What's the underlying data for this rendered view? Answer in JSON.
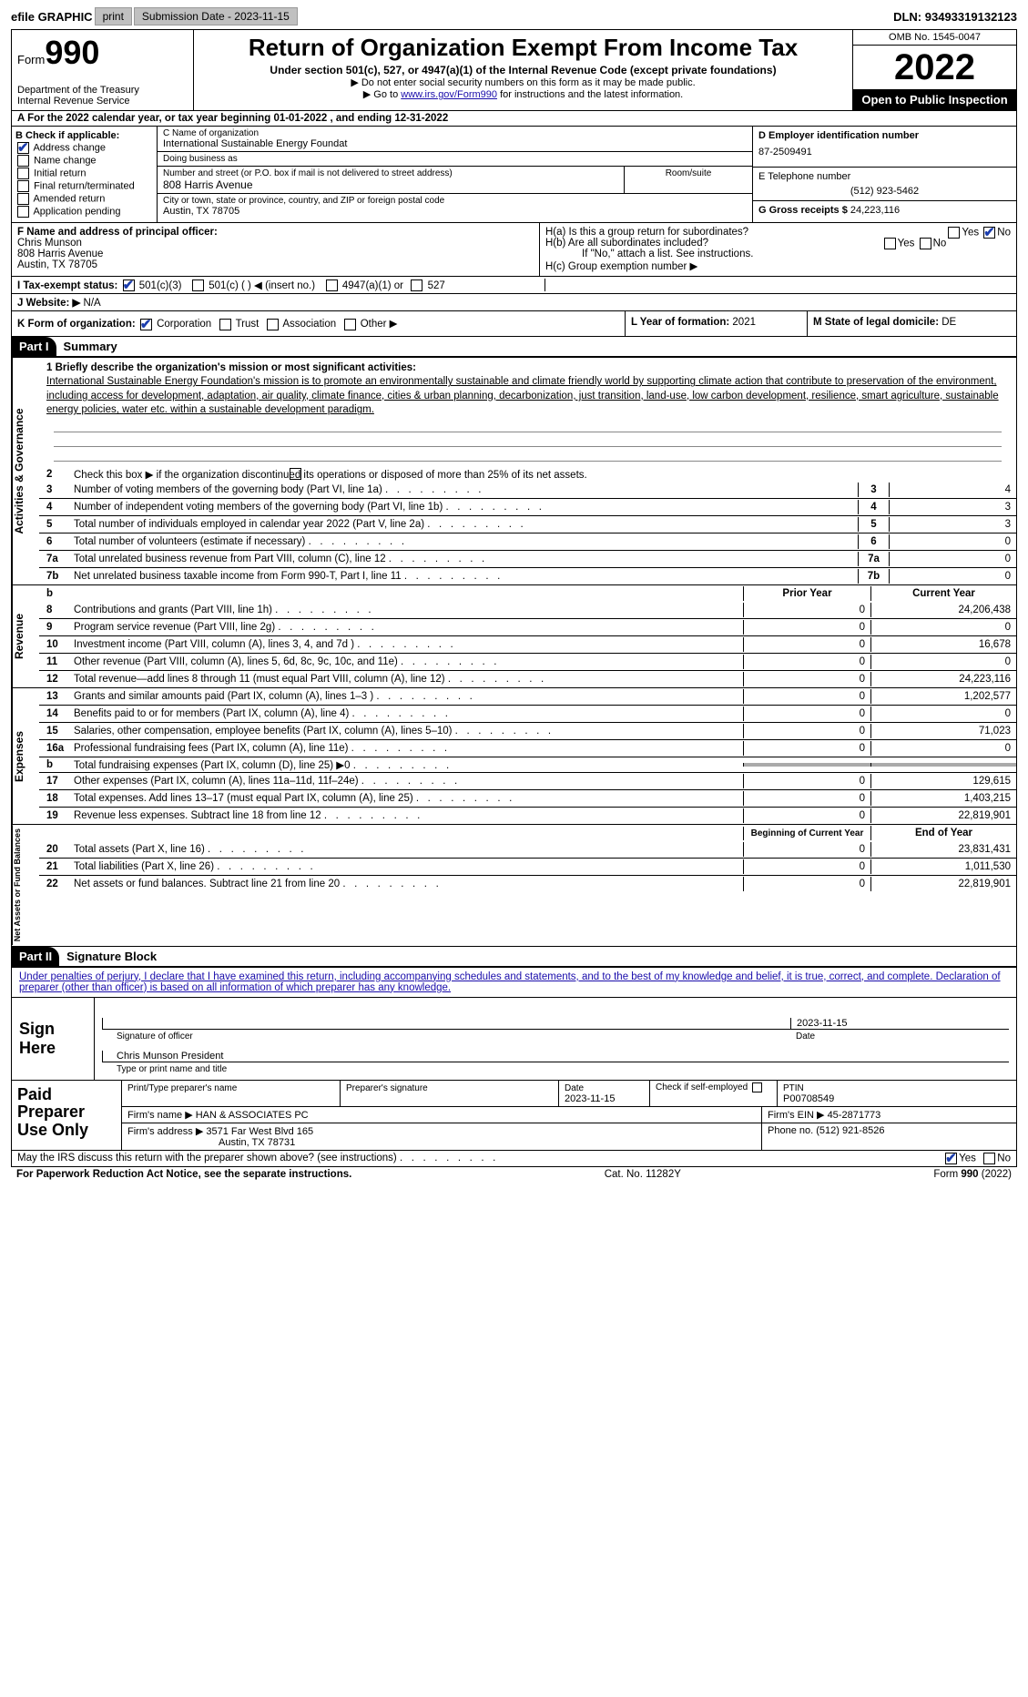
{
  "topbar": {
    "efile": "efile GRAPHIC",
    "print": "print",
    "subdate_lbl": "Submission Date - ",
    "subdate": "2023-11-15",
    "dln_lbl": "DLN: ",
    "dln": "93493319132123"
  },
  "hdr": {
    "form": "Form",
    "num": "990",
    "dept": "Department of the Treasury\nInternal Revenue Service",
    "title": "Return of Organization Exempt From Income Tax",
    "sub": "Under section 501(c), 527, or 4947(a)(1) of the Internal Revenue Code (except private foundations)",
    "note1": "▶ Do not enter social security numbers on this form as it may be made public.",
    "note2_pre": "▶ Go to ",
    "note2_link": "www.irs.gov/Form990",
    "note2_post": " for instructions and the latest information.",
    "omb": "OMB No. 1545-0047",
    "year": "2022",
    "pub": "Open to Public Inspection"
  },
  "rowA": {
    "text": "A For the 2022 calendar year, or tax year beginning ",
    "d1": "01-01-2022",
    "mid": " , and ending ",
    "d2": "12-31-2022"
  },
  "colB": {
    "lbl": "B Check if applicable:",
    "items": [
      "Address change",
      "Name change",
      "Initial return",
      "Final return/terminated",
      "Amended return",
      "Application pending"
    ],
    "checked": [
      true,
      false,
      false,
      false,
      false,
      false
    ]
  },
  "colC": {
    "name_lbl": "C Name of organization",
    "name": "International Sustainable Energy Foundat",
    "dba_lbl": "Doing business as",
    "dba": "",
    "addr_lbl": "Number and street (or P.O. box if mail is not delivered to street address)",
    "room_lbl": "Room/suite",
    "addr": "808 Harris Avenue",
    "city_lbl": "City or town, state or province, country, and ZIP or foreign postal code",
    "city": "Austin, TX  78705"
  },
  "colD": {
    "ein_lbl": "D Employer identification number",
    "ein": "87-2509491",
    "tel_lbl": "E Telephone number",
    "tel": "(512) 923-5462",
    "gross_lbl": "G Gross receipts $ ",
    "gross": "24,223,116"
  },
  "secF": {
    "lbl": "F  Name and address of principal officer:",
    "name": "Chris Munson",
    "addr1": "808 Harris Avenue",
    "addr2": "Austin, TX  78705"
  },
  "secH": {
    "ha": "H(a)  Is this a group return for subordinates?",
    "hb": "H(b)  Are all subordinates included?",
    "hbnote": "If \"No,\" attach a list. See instructions.",
    "hc": "H(c)  Group exemption number ▶",
    "ha_no": true
  },
  "rowI": {
    "lbl": "I   Tax-exempt status:",
    "opts": [
      "501(c)(3)",
      "501(c) (  ) ◀ (insert no.)",
      "4947(a)(1) or",
      "527"
    ],
    "checked": [
      true,
      false,
      false,
      false
    ]
  },
  "rowJ": {
    "lbl": "J   Website: ▶ ",
    "val": "N/A"
  },
  "rowK": {
    "lbl": "K Form of organization: ",
    "opts": [
      "Corporation",
      "Trust",
      "Association",
      "Other ▶"
    ],
    "checked": [
      true,
      false,
      false,
      false
    ],
    "lyr_lbl": "L Year of formation: ",
    "lyr": "2021",
    "mstate_lbl": "M State of legal domicile: ",
    "mstate": "DE"
  },
  "part1": {
    "hdr": "Part I",
    "title": "Summary",
    "l1_lbl": "1  Briefly describe the organization's mission or most significant activities:",
    "l1": "International Sustainable Energy Foundation's mission is to promote an environmentally sustainable and climate friendly world by supporting climate action that contribute to preservation of the environment, including access for development, adaptation, air quality, climate finance, cities & urban planning, decarbonization, just transition, land-use, low carbon development, resilience, smart agriculture, sustainable energy policies, water etc. within a sustainable development paradigm.",
    "l2": "Check this box ▶       if the organization discontinued its operations or disposed of more than 25% of its net assets.",
    "gov_lines": [
      {
        "n": "3",
        "txt": "Number of voting members of the governing body (Part VI, line 1a)",
        "val": "4"
      },
      {
        "n": "4",
        "txt": "Number of independent voting members of the governing body (Part VI, line 1b)",
        "val": "3"
      },
      {
        "n": "5",
        "txt": "Total number of individuals employed in calendar year 2022 (Part V, line 2a)",
        "val": "3"
      },
      {
        "n": "6",
        "txt": "Total number of volunteers (estimate if necessary)",
        "val": "0"
      },
      {
        "n": "7a",
        "txt": "Total unrelated business revenue from Part VIII, column (C), line 12",
        "val": "0"
      },
      {
        "n": "7b",
        "txt": "Net unrelated business taxable income from Form 990-T, Part I, line 11",
        "val": "0"
      }
    ],
    "col_hdr": {
      "prior": "Prior Year",
      "curr": "Current Year"
    },
    "rev_lines": [
      {
        "n": "8",
        "txt": "Contributions and grants (Part VIII, line 1h)",
        "p": "0",
        "c": "24,206,438"
      },
      {
        "n": "9",
        "txt": "Program service revenue (Part VIII, line 2g)",
        "p": "0",
        "c": "0"
      },
      {
        "n": "10",
        "txt": "Investment income (Part VIII, column (A), lines 3, 4, and 7d )",
        "p": "0",
        "c": "16,678"
      },
      {
        "n": "11",
        "txt": "Other revenue (Part VIII, column (A), lines 5, 6d, 8c, 9c, 10c, and 11e)",
        "p": "0",
        "c": "0"
      },
      {
        "n": "12",
        "txt": "Total revenue—add lines 8 through 11 (must equal Part VIII, column (A), line 12)",
        "p": "0",
        "c": "24,223,116"
      }
    ],
    "exp_lines": [
      {
        "n": "13",
        "txt": "Grants and similar amounts paid (Part IX, column (A), lines 1–3 )",
        "p": "0",
        "c": "1,202,577"
      },
      {
        "n": "14",
        "txt": "Benefits paid to or for members (Part IX, column (A), line 4)",
        "p": "0",
        "c": "0"
      },
      {
        "n": "15",
        "txt": "Salaries, other compensation, employee benefits (Part IX, column (A), lines 5–10)",
        "p": "0",
        "c": "71,023"
      },
      {
        "n": "16a",
        "txt": "Professional fundraising fees (Part IX, column (A), line 11e)",
        "p": "0",
        "c": "0"
      },
      {
        "n": "b",
        "txt": "Total fundraising expenses (Part IX, column (D), line 25) ▶0",
        "p": "",
        "c": "",
        "shade": true
      },
      {
        "n": "17",
        "txt": "Other expenses (Part IX, column (A), lines 11a–11d, 11f–24e)",
        "p": "0",
        "c": "129,615"
      },
      {
        "n": "18",
        "txt": "Total expenses. Add lines 13–17 (must equal Part IX, column (A), line 25)",
        "p": "0",
        "c": "1,403,215"
      },
      {
        "n": "19",
        "txt": "Revenue less expenses. Subtract line 18 from line 12",
        "p": "0",
        "c": "22,819,901"
      }
    ],
    "na_hdr": {
      "beg": "Beginning of Current Year",
      "end": "End of Year"
    },
    "na_lines": [
      {
        "n": "20",
        "txt": "Total assets (Part X, line 16)",
        "p": "0",
        "c": "23,831,431"
      },
      {
        "n": "21",
        "txt": "Total liabilities (Part X, line 26)",
        "p": "0",
        "c": "1,011,530"
      },
      {
        "n": "22",
        "txt": "Net assets or fund balances. Subtract line 21 from line 20",
        "p": "0",
        "c": "22,819,901"
      }
    ],
    "vtabs": [
      "Activities & Governance",
      "Revenue",
      "Expenses",
      "Net Assets or Fund Balances"
    ]
  },
  "part2": {
    "hdr": "Part II",
    "title": "Signature Block",
    "decl": "Under penalties of perjury, I declare that I have examined this return, including accompanying schedules and statements, and to the best of my knowledge and belief, it is true, correct, and complete. Declaration of preparer (other than officer) is based on all information of which preparer has any knowledge.",
    "sign_here": "Sign Here",
    "sig_lbl": "Signature of officer",
    "date_lbl": "Date",
    "sig_date": "2023-11-15",
    "name_lbl": "Type or print name and title",
    "name": "Chris Munson  President",
    "paid": "Paid Preparer Use Only",
    "prep_name_lbl": "Print/Type preparer's name",
    "prep_sig_lbl": "Preparer's signature",
    "prep_date_lbl": "Date",
    "prep_date": "2023-11-15",
    "self_lbl": "Check         if self-employed",
    "ptin_lbl": "PTIN",
    "ptin": "P00708549",
    "firm_lbl": "Firm's name    ▶ ",
    "firm": "HAN & ASSOCIATES PC",
    "fein_lbl": "Firm's EIN ▶ ",
    "fein": "45-2871773",
    "faddr_lbl": "Firm's address ▶ ",
    "faddr1": "3571 Far West Blvd 165",
    "faddr2": "Austin, TX  78731",
    "fphone_lbl": "Phone no. ",
    "fphone": "(512) 921-8526"
  },
  "foot": {
    "discuss": "May the IRS discuss this return with the preparer shown above? (see instructions)",
    "yes": true,
    "pra": "For Paperwork Reduction Act Notice, see the separate instructions.",
    "cat": "Cat. No. 11282Y",
    "form": "Form 990 (2022)"
  }
}
